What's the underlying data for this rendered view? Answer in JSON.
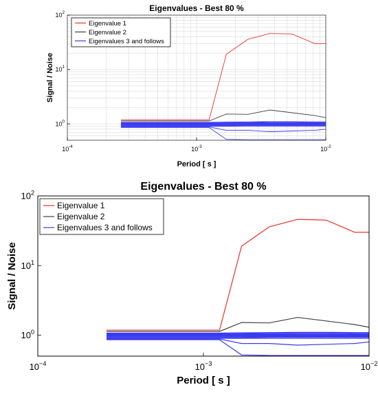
{
  "chart_data": [
    {
      "type": "line",
      "title": "Eigenvalues - Best 80 %",
      "xlabel": "Period [ s ]",
      "ylabel": "Signal / Noise",
      "xscale": "log",
      "yscale": "log",
      "xlim": [
        0.0001,
        0.01
      ],
      "ylim": [
        0.5,
        100
      ],
      "x_ticks": [
        {
          "value": 0.0001,
          "base": "10",
          "exp": "-4"
        },
        {
          "value": 0.001,
          "base": "10",
          "exp": "-3"
        },
        {
          "value": 0.01,
          "base": "10",
          "exp": "-2"
        }
      ],
      "y_ticks": [
        {
          "value": 1,
          "base": "10",
          "exp": "0"
        },
        {
          "value": 10,
          "base": "10",
          "exp": "1"
        },
        {
          "value": 100,
          "base": "10",
          "exp": "2"
        }
      ],
      "grid": true,
      "legend_position": "top-left",
      "legend": [
        {
          "label": "Eigenvalue 1",
          "color": "#e8312a"
        },
        {
          "label": "Eigenvalue 2",
          "color": "#404040"
        },
        {
          "label": "Eigenvalues 3 and follows",
          "color": "#3a3af0"
        }
      ],
      "series": [
        {
          "color": "#e8312a",
          "x": [
            0.00026,
            0.00125,
            0.0017,
            0.0025,
            0.0037,
            0.0055,
            0.0082,
            0.01
          ],
          "y": [
            1.18,
            1.18,
            19,
            36,
            46,
            45,
            30,
            30
          ]
        },
        {
          "color": "#404040",
          "x": [
            0.00026,
            0.00125,
            0.0017,
            0.0025,
            0.0037,
            0.0055,
            0.0082,
            0.01
          ],
          "y": [
            1.13,
            1.13,
            1.52,
            1.5,
            1.8,
            1.6,
            1.42,
            1.3
          ]
        },
        {
          "color": "#3a3af0",
          "x": [
            0.00026,
            0.00125,
            0.0017,
            0.0025,
            0.0037,
            0.0055,
            0.0082,
            0.01
          ],
          "y": [
            1.07,
            1.07,
            1.08,
            1.09,
            1.1,
            1.1,
            1.09,
            1.09
          ]
        },
        {
          "color": "#3a3af0",
          "x": [
            0.00026,
            0.00125,
            0.0017,
            0.0025,
            0.0037,
            0.0055,
            0.0082,
            0.01
          ],
          "y": [
            1.05,
            1.05,
            1.06,
            1.06,
            1.07,
            1.07,
            1.06,
            1.06
          ]
        },
        {
          "color": "#3a3af0",
          "x": [
            0.00026,
            0.00125,
            0.0017,
            0.0025,
            0.0037,
            0.0055,
            0.0082,
            0.01
          ],
          "y": [
            1.03,
            1.03,
            1.03,
            1.04,
            1.04,
            1.04,
            1.04,
            1.04
          ]
        },
        {
          "color": "#3a3af0",
          "x": [
            0.00026,
            0.00125,
            0.0017,
            0.0025,
            0.0037,
            0.0055,
            0.0082,
            0.01
          ],
          "y": [
            1.01,
            1.01,
            1.01,
            1.02,
            1.02,
            1.02,
            1.02,
            1.02
          ]
        },
        {
          "color": "#3a3af0",
          "x": [
            0.00026,
            0.00125,
            0.0017,
            0.0025,
            0.0037,
            0.0055,
            0.0082,
            0.01
          ],
          "y": [
            1.0,
            1.0,
            1.0,
            1.0,
            1.0,
            1.0,
            1.0,
            1.0
          ]
        },
        {
          "color": "#3a3af0",
          "x": [
            0.00026,
            0.00125,
            0.0017,
            0.0025,
            0.0037,
            0.0055,
            0.0082,
            0.01
          ],
          "y": [
            0.98,
            0.98,
            0.98,
            0.98,
            0.98,
            0.98,
            0.98,
            0.98
          ]
        },
        {
          "color": "#3a3af0",
          "x": [
            0.00026,
            0.00125,
            0.0017,
            0.0025,
            0.0037,
            0.0055,
            0.0082,
            0.01
          ],
          "y": [
            0.96,
            0.96,
            0.96,
            0.96,
            0.96,
            0.96,
            0.96,
            0.96
          ]
        },
        {
          "color": "#3a3af0",
          "x": [
            0.00026,
            0.00125,
            0.0017,
            0.0025,
            0.0037,
            0.0055,
            0.0082,
            0.01
          ],
          "y": [
            0.94,
            0.94,
            0.94,
            0.95,
            0.95,
            0.95,
            0.95,
            0.95
          ]
        },
        {
          "color": "#3a3af0",
          "x": [
            0.00026,
            0.00125,
            0.0017,
            0.0025,
            0.0037,
            0.0055,
            0.0082,
            0.01
          ],
          "y": [
            0.92,
            0.92,
            0.92,
            0.93,
            0.93,
            0.93,
            0.93,
            0.93
          ]
        },
        {
          "color": "#3a3af0",
          "x": [
            0.00026,
            0.00125,
            0.0017,
            0.0025,
            0.0037,
            0.0055,
            0.0082,
            0.01
          ],
          "y": [
            0.9,
            0.9,
            0.9,
            0.9,
            0.9,
            0.9,
            0.9,
            0.9
          ]
        },
        {
          "color": "#3a3af0",
          "x": [
            0.00026,
            0.00125,
            0.0017,
            0.0025,
            0.0037,
            0.0055,
            0.0082,
            0.01
          ],
          "y": [
            0.88,
            0.88,
            0.76,
            0.76,
            0.72,
            0.74,
            0.76,
            0.8
          ]
        },
        {
          "color": "#3a3af0",
          "x": [
            0.00026,
            0.00125,
            0.0017,
            0.0025,
            0.0037,
            0.0055,
            0.0082,
            0.01
          ],
          "y": [
            0.86,
            0.86,
            0.52,
            0.51,
            0.51,
            0.51,
            0.51,
            0.51
          ]
        }
      ]
    },
    {
      "type": "line",
      "title": "Eigenvalues - Best 80 %",
      "xlabel": "Period [ s ]",
      "ylabel": "Signal / Noise",
      "xscale": "log",
      "yscale": "log",
      "xlim": [
        0.0001,
        0.01
      ],
      "ylim": [
        0.5,
        100
      ],
      "x_ticks": [
        {
          "value": 0.0001,
          "base": "10",
          "exp": "−4"
        },
        {
          "value": 0.001,
          "base": "10",
          "exp": "−3"
        },
        {
          "value": 0.01,
          "base": "10",
          "exp": "−2"
        }
      ],
      "y_ticks": [
        {
          "value": 1,
          "base": "10",
          "exp": "0"
        },
        {
          "value": 10,
          "base": "10",
          "exp": "1"
        },
        {
          "value": 100,
          "base": "10",
          "exp": "2"
        }
      ],
      "grid": false,
      "legend_position": "top-left",
      "legend": [
        {
          "label": "Eigenvalue 1",
          "color": "#e8312a"
        },
        {
          "label": "Eigenvalue 2",
          "color": "#404040"
        },
        {
          "label": "Eigenvalues 3 and follows",
          "color": "#3a3af0"
        }
      ],
      "series": [
        {
          "color": "#e8312a",
          "x": [
            0.00026,
            0.00125,
            0.0017,
            0.0025,
            0.0037,
            0.0055,
            0.0082,
            0.01
          ],
          "y": [
            1.18,
            1.18,
            19,
            36,
            46,
            45,
            30,
            30
          ]
        },
        {
          "color": "#404040",
          "x": [
            0.00026,
            0.00125,
            0.0017,
            0.0025,
            0.0037,
            0.0055,
            0.0082,
            0.01
          ],
          "y": [
            1.13,
            1.13,
            1.52,
            1.5,
            1.8,
            1.6,
            1.42,
            1.3
          ]
        },
        {
          "color": "#3a3af0",
          "x": [
            0.00026,
            0.00125,
            0.0017,
            0.0025,
            0.0037,
            0.0055,
            0.0082,
            0.01
          ],
          "y": [
            1.07,
            1.07,
            1.08,
            1.09,
            1.1,
            1.1,
            1.09,
            1.09
          ]
        },
        {
          "color": "#3a3af0",
          "x": [
            0.00026,
            0.00125,
            0.0017,
            0.0025,
            0.0037,
            0.0055,
            0.0082,
            0.01
          ],
          "y": [
            1.05,
            1.05,
            1.06,
            1.06,
            1.07,
            1.07,
            1.06,
            1.06
          ]
        },
        {
          "color": "#3a3af0",
          "x": [
            0.00026,
            0.00125,
            0.0017,
            0.0025,
            0.0037,
            0.0055,
            0.0082,
            0.01
          ],
          "y": [
            1.03,
            1.03,
            1.03,
            1.04,
            1.04,
            1.04,
            1.04,
            1.04
          ]
        },
        {
          "color": "#3a3af0",
          "x": [
            0.00026,
            0.00125,
            0.0017,
            0.0025,
            0.0037,
            0.0055,
            0.0082,
            0.01
          ],
          "y": [
            1.01,
            1.01,
            1.01,
            1.02,
            1.02,
            1.02,
            1.02,
            1.02
          ]
        },
        {
          "color": "#3a3af0",
          "x": [
            0.00026,
            0.00125,
            0.0017,
            0.0025,
            0.0037,
            0.0055,
            0.0082,
            0.01
          ],
          "y": [
            1.0,
            1.0,
            1.0,
            1.0,
            1.0,
            1.0,
            1.0,
            1.0
          ]
        },
        {
          "color": "#3a3af0",
          "x": [
            0.00026,
            0.00125,
            0.0017,
            0.0025,
            0.0037,
            0.0055,
            0.0082,
            0.01
          ],
          "y": [
            0.98,
            0.98,
            0.98,
            0.98,
            0.98,
            0.98,
            0.98,
            0.98
          ]
        },
        {
          "color": "#3a3af0",
          "x": [
            0.00026,
            0.00125,
            0.0017,
            0.0025,
            0.0037,
            0.0055,
            0.0082,
            0.01
          ],
          "y": [
            0.96,
            0.96,
            0.96,
            0.96,
            0.96,
            0.96,
            0.96,
            0.96
          ]
        },
        {
          "color": "#3a3af0",
          "x": [
            0.00026,
            0.00125,
            0.0017,
            0.0025,
            0.0037,
            0.0055,
            0.0082,
            0.01
          ],
          "y": [
            0.94,
            0.94,
            0.94,
            0.95,
            0.95,
            0.95,
            0.95,
            0.95
          ]
        },
        {
          "color": "#3a3af0",
          "x": [
            0.00026,
            0.00125,
            0.0017,
            0.0025,
            0.0037,
            0.0055,
            0.0082,
            0.01
          ],
          "y": [
            0.92,
            0.92,
            0.92,
            0.93,
            0.93,
            0.93,
            0.93,
            0.93
          ]
        },
        {
          "color": "#3a3af0",
          "x": [
            0.00026,
            0.00125,
            0.0017,
            0.0025,
            0.0037,
            0.0055,
            0.0082,
            0.01
          ],
          "y": [
            0.9,
            0.9,
            0.9,
            0.9,
            0.9,
            0.9,
            0.9,
            0.9
          ]
        },
        {
          "color": "#3a3af0",
          "x": [
            0.00026,
            0.00125,
            0.0017,
            0.0025,
            0.0037,
            0.0055,
            0.0082,
            0.01
          ],
          "y": [
            0.88,
            0.88,
            0.76,
            0.76,
            0.72,
            0.74,
            0.76,
            0.8
          ]
        },
        {
          "color": "#3a3af0",
          "x": [
            0.00026,
            0.00125,
            0.0017,
            0.0025,
            0.0037,
            0.0055,
            0.0082,
            0.01
          ],
          "y": [
            0.86,
            0.86,
            0.52,
            0.51,
            0.51,
            0.51,
            0.51,
            0.51
          ]
        }
      ]
    }
  ]
}
